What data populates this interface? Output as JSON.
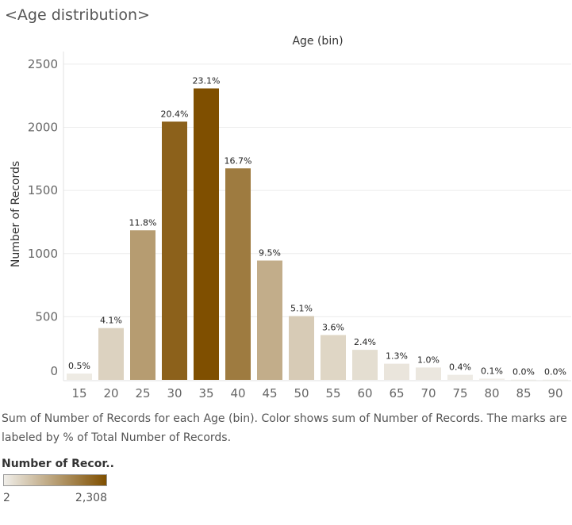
{
  "header": {
    "title": "<Age distribution>"
  },
  "chart_data": {
    "type": "bar",
    "title": "",
    "xlabel": "Age (bin)",
    "ylabel": "Number of Records",
    "ylim": [
      0,
      2600
    ],
    "y_ticks": [
      0,
      500,
      1000,
      1500,
      2000,
      2500
    ],
    "grid": true,
    "categories": [
      "15",
      "20",
      "25",
      "30",
      "35",
      "40",
      "45",
      "50",
      "55",
      "60",
      "65",
      "70",
      "75",
      "80",
      "85",
      "90"
    ],
    "values": [
      50,
      410,
      1185,
      2045,
      2308,
      1675,
      945,
      505,
      355,
      238,
      128,
      98,
      40,
      10,
      2,
      2
    ],
    "labels": [
      "0.5%",
      "4.1%",
      "11.8%",
      "20.4%",
      "23.1%",
      "16.7%",
      "9.5%",
      "5.1%",
      "3.6%",
      "2.4%",
      "1.3%",
      "1.0%",
      "0.4%",
      "0.1%",
      "0.0%",
      "0.0%"
    ],
    "color_scale": {
      "min": 2,
      "max": 2308,
      "min_color": "#f0eee9",
      "max_color": "#7f4f00"
    }
  },
  "caption": "Sum of Number of Records for each Age (bin).  Color shows sum of Number of Records.  The marks are labeled by % of Total Number of Records.",
  "legend": {
    "title": "Number of Recor..",
    "min_label": "2",
    "max_label": "2,308"
  }
}
